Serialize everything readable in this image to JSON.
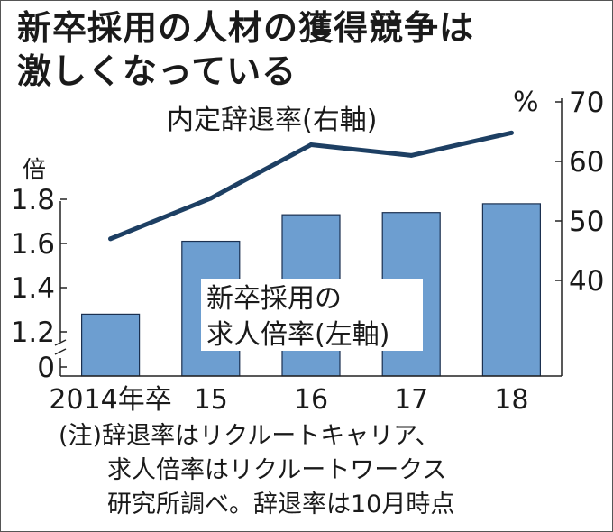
{
  "title_lines": [
    "新卒採用の人材の獲得競争は",
    "激しくなっている"
  ],
  "chart_data": {
    "type": "bar+line",
    "categories": [
      "2014年卒",
      "15",
      "16",
      "17",
      "18"
    ],
    "series": [
      {
        "name": "新卒採用の求人倍率(左軸)",
        "name_lines": [
          "新卒採用の",
          "求人倍率(左軸)"
        ],
        "kind": "bar",
        "axis": "left",
        "values": [
          1.28,
          1.61,
          1.73,
          1.74,
          1.78
        ],
        "color": "#6d9ed0"
      },
      {
        "name": "内定辞退率(右軸)",
        "kind": "line",
        "axis": "right",
        "values": [
          47.0,
          53.8,
          62.8,
          61.0,
          64.8
        ],
        "color": "#1d3f63"
      }
    ],
    "left_axis": {
      "unit": "倍",
      "ticks": [
        0,
        1.2,
        1.4,
        1.6,
        1.8
      ],
      "tick_labels": [
        "0",
        "1.2",
        "1.4",
        "1.6",
        "1.8"
      ],
      "broken": true,
      "range": [
        1.1,
        1.9
      ]
    },
    "right_axis": {
      "unit": "%",
      "ticks": [
        40,
        50,
        60,
        70
      ],
      "tick_labels": [
        "40",
        "50",
        "60",
        "70"
      ],
      "range": [
        30,
        70
      ]
    }
  },
  "notes": [
    "(注)辞退率はリクルートキャリア、",
    "　　求人倍率はリクルートワークス",
    "　　研究所調べ。辞退率は10月時点"
  ]
}
